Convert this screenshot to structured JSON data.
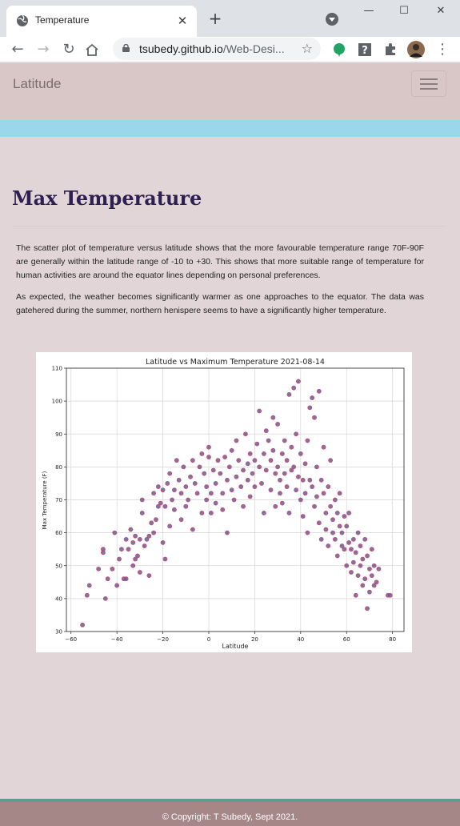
{
  "browser": {
    "tab_title": "Temperature",
    "url_host": "tsubedy.github.io",
    "url_path": "/Web-Desi...",
    "icons": [
      "globe-icon",
      "close-icon",
      "plus-icon",
      "tab-search-icon",
      "back-icon",
      "forward-icon",
      "reload-icon",
      "home-icon",
      "lock-icon",
      "star-icon",
      "extension-icon",
      "help-icon",
      "puzzle-icon",
      "avatar",
      "menu-kebab-icon"
    ]
  },
  "site": {
    "brand": "Latitude",
    "accent_band_color": "#9ad6ec"
  },
  "content": {
    "heading": "Max Temperature",
    "paragraphs": [
      "The scatter plot of temperature versus latitude shows that the more favourable temperature range 70F-90F are generally within the latitude range of -10 to +30. This shows that more suitable range of temperature for human activities are around the equator lines depending on personal preferences.",
      "As expected, the weather becomes significantly warmer as one approaches to the equator. The data was gatehered during the summer, northern henispere seems to have a significantly higher temperature."
    ]
  },
  "chart_data": {
    "type": "scatter",
    "title": "Latitude vs Maximum Temperature 2021-08-14",
    "xlabel": "Latitude",
    "ylabel": "Max Temperature (F)",
    "xlim": [
      -62,
      85
    ],
    "ylim": [
      30,
      110
    ],
    "xticks": [
      -60,
      -40,
      -20,
      0,
      20,
      40,
      60,
      80
    ],
    "yticks": [
      30,
      40,
      50,
      60,
      70,
      80,
      90,
      100,
      110
    ],
    "grid": true,
    "marker_fill": "#6b5b8c",
    "marker_edge": "#d1406a",
    "points": [
      [
        -55,
        32
      ],
      [
        -53,
        41
      ],
      [
        -52,
        44
      ],
      [
        -48,
        49
      ],
      [
        -46,
        54
      ],
      [
        -46,
        55
      ],
      [
        -45,
        40
      ],
      [
        -44,
        46
      ],
      [
        -42,
        49
      ],
      [
        -41,
        60
      ],
      [
        -40,
        44
      ],
      [
        -39,
        52
      ],
      [
        -38,
        55
      ],
      [
        -37,
        46
      ],
      [
        -36,
        58
      ],
      [
        -36,
        46
      ],
      [
        -35,
        55
      ],
      [
        -34,
        61
      ],
      [
        -33,
        57
      ],
      [
        -33,
        50
      ],
      [
        -32,
        59
      ],
      [
        -32,
        52
      ],
      [
        -31,
        53
      ],
      [
        -30,
        48
      ],
      [
        -30,
        58
      ],
      [
        -29,
        66
      ],
      [
        -29,
        70
      ],
      [
        -28,
        56
      ],
      [
        -27,
        58
      ],
      [
        -26,
        59
      ],
      [
        -26,
        47
      ],
      [
        -25,
        63
      ],
      [
        -24,
        60
      ],
      [
        -24,
        72
      ],
      [
        -23,
        64
      ],
      [
        -22,
        68
      ],
      [
        -22,
        74
      ],
      [
        -21,
        69
      ],
      [
        -20,
        73
      ],
      [
        -20,
        57
      ],
      [
        -19,
        52
      ],
      [
        -19,
        68
      ],
      [
        -18,
        75
      ],
      [
        -17,
        78
      ],
      [
        -17,
        62
      ],
      [
        -16,
        70
      ],
      [
        -15,
        67
      ],
      [
        -15,
        73
      ],
      [
        -14,
        82
      ],
      [
        -13,
        76
      ],
      [
        -12,
        64
      ],
      [
        -12,
        72
      ],
      [
        -11,
        80
      ],
      [
        -10,
        74
      ],
      [
        -10,
        68
      ],
      [
        -9,
        70
      ],
      [
        -8,
        77
      ],
      [
        -7,
        82
      ],
      [
        -7,
        61
      ],
      [
        -6,
        75
      ],
      [
        -5,
        72
      ],
      [
        -4,
        80
      ],
      [
        -3,
        84
      ],
      [
        -3,
        66
      ],
      [
        -2,
        78
      ],
      [
        -1,
        70
      ],
      [
        -1,
        74
      ],
      [
        0,
        83
      ],
      [
        0,
        86
      ],
      [
        1,
        72
      ],
      [
        1,
        66
      ],
      [
        2,
        79
      ],
      [
        3,
        75
      ],
      [
        3,
        69
      ],
      [
        4,
        82
      ],
      [
        5,
        78
      ],
      [
        6,
        72
      ],
      [
        6,
        67
      ],
      [
        7,
        83
      ],
      [
        8,
        76
      ],
      [
        8,
        60
      ],
      [
        9,
        80
      ],
      [
        10,
        85
      ],
      [
        10,
        73
      ],
      [
        11,
        70
      ],
      [
        12,
        88
      ],
      [
        12,
        77
      ],
      [
        13,
        82
      ],
      [
        14,
        74
      ],
      [
        15,
        79
      ],
      [
        15,
        68
      ],
      [
        16,
        90
      ],
      [
        17,
        81
      ],
      [
        17,
        76
      ],
      [
        18,
        84
      ],
      [
        18,
        71
      ],
      [
        19,
        78
      ],
      [
        20,
        82
      ],
      [
        20,
        74
      ],
      [
        21,
        87
      ],
      [
        22,
        80
      ],
      [
        22,
        97
      ],
      [
        23,
        75
      ],
      [
        24,
        84
      ],
      [
        24,
        66
      ],
      [
        25,
        91
      ],
      [
        25,
        79
      ],
      [
        26,
        88
      ],
      [
        27,
        82
      ],
      [
        27,
        73
      ],
      [
        28,
        85
      ],
      [
        28,
        95
      ],
      [
        29,
        78
      ],
      [
        29,
        68
      ],
      [
        30,
        93
      ],
      [
        30,
        80
      ],
      [
        31,
        76
      ],
      [
        31,
        72
      ],
      [
        32,
        84
      ],
      [
        32,
        69
      ],
      [
        33,
        88
      ],
      [
        33,
        78
      ],
      [
        34,
        82
      ],
      [
        34,
        74
      ],
      [
        35,
        102
      ],
      [
        35,
        66
      ],
      [
        36,
        86
      ],
      [
        36,
        79
      ],
      [
        37,
        80
      ],
      [
        37,
        104
      ],
      [
        38,
        73
      ],
      [
        38,
        90
      ],
      [
        39,
        77
      ],
      [
        39,
        106
      ],
      [
        40,
        84
      ],
      [
        40,
        70
      ],
      [
        41,
        76
      ],
      [
        41,
        65
      ],
      [
        42,
        81
      ],
      [
        42,
        72
      ],
      [
        43,
        88
      ],
      [
        43,
        60
      ],
      [
        44,
        98
      ],
      [
        44,
        76
      ],
      [
        45,
        74
      ],
      [
        45,
        101
      ],
      [
        46,
        95
      ],
      [
        46,
        68
      ],
      [
        47,
        80
      ],
      [
        47,
        71
      ],
      [
        48,
        103
      ],
      [
        48,
        63
      ],
      [
        49,
        76
      ],
      [
        49,
        58
      ],
      [
        50,
        72
      ],
      [
        50,
        86
      ],
      [
        51,
        66
      ],
      [
        51,
        61
      ],
      [
        52,
        74
      ],
      [
        52,
        56
      ],
      [
        53,
        68
      ],
      [
        53,
        82
      ],
      [
        54,
        64
      ],
      [
        54,
        60
      ],
      [
        55,
        70
      ],
      [
        55,
        58
      ],
      [
        56,
        66
      ],
      [
        56,
        53
      ],
      [
        57,
        72
      ],
      [
        57,
        62
      ],
      [
        58,
        60
      ],
      [
        58,
        56
      ],
      [
        59,
        65
      ],
      [
        59,
        55
      ],
      [
        60,
        62
      ],
      [
        60,
        50
      ],
      [
        61,
        57
      ],
      [
        61,
        66
      ],
      [
        62,
        55
      ],
      [
        62,
        48
      ],
      [
        63,
        58
      ],
      [
        63,
        51
      ],
      [
        64,
        54
      ],
      [
        64,
        41
      ],
      [
        65,
        60
      ],
      [
        65,
        47
      ],
      [
        66,
        56
      ],
      [
        66,
        50
      ],
      [
        67,
        52
      ],
      [
        67,
        44
      ],
      [
        68,
        58
      ],
      [
        68,
        46
      ],
      [
        69,
        53
      ],
      [
        69,
        37
      ],
      [
        70,
        49
      ],
      [
        70,
        42
      ],
      [
        71,
        55
      ],
      [
        71,
        47
      ],
      [
        72,
        50
      ],
      [
        72,
        44
      ],
      [
        73,
        45
      ],
      [
        74,
        49
      ],
      [
        78,
        41
      ],
      [
        79,
        41
      ]
    ]
  },
  "footer": {
    "copyright": "© Copyright: T Subedy, Sept 2021."
  }
}
